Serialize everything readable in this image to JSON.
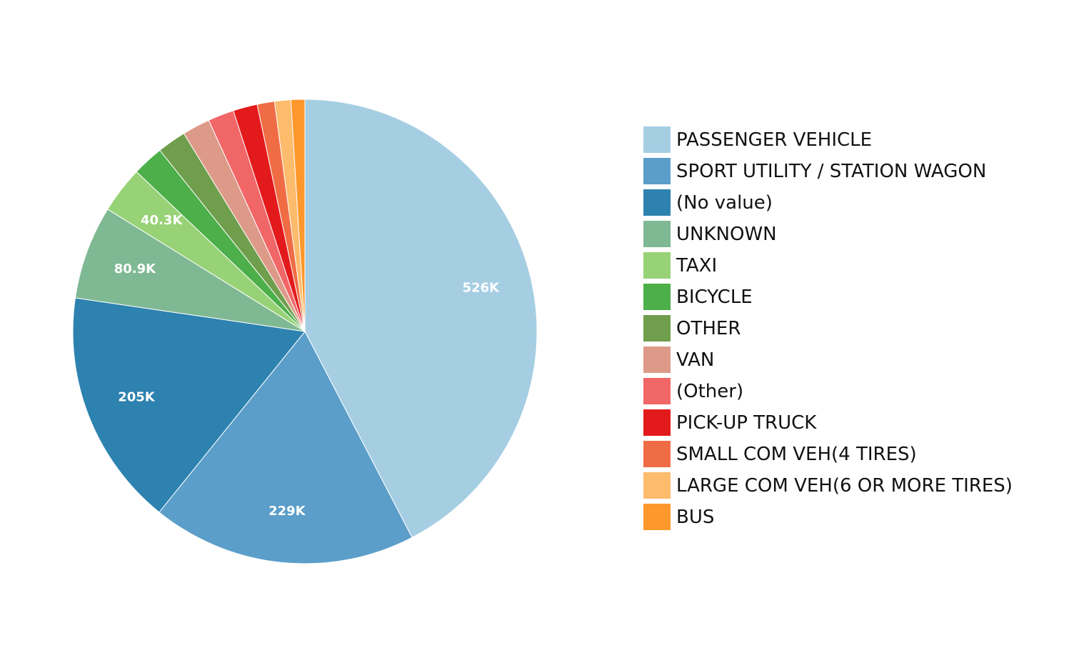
{
  "chart_data": {
    "type": "pie",
    "legend_position": "right",
    "slices": [
      {
        "label": "PASSENGER VEHICLE",
        "value": 526000,
        "display": "526K",
        "color": "#a6cee3"
      },
      {
        "label": "SPORT UTILITY / STATION WAGON",
        "value": 229000,
        "display": "229K",
        "color": "#5b9ec9"
      },
      {
        "label": "(No value)",
        "value": 205000,
        "display": "205K",
        "color": "#2d82af"
      },
      {
        "label": "UNKNOWN",
        "value": 80900,
        "display": "80.9K",
        "color": "#7fb994"
      },
      {
        "label": "TAXI",
        "value": 40300,
        "display": "40.3K",
        "color": "#98d277"
      },
      {
        "label": "BICYCLE",
        "value": 27000,
        "display": "",
        "color": "#4daf4a"
      },
      {
        "label": "OTHER",
        "value": 25000,
        "display": "",
        "color": "#6f9e4c"
      },
      {
        "label": "VAN",
        "value": 24000,
        "display": "",
        "color": "#dd9a88"
      },
      {
        "label": "(Other)",
        "value": 22500,
        "display": "",
        "color": "#f16667"
      },
      {
        "label": "PICK-UP TRUCK",
        "value": 21000,
        "display": "",
        "color": "#e31a1c"
      },
      {
        "label": "SMALL COM VEH(4 TIRES)",
        "value": 15000,
        "display": "",
        "color": "#f06c45"
      },
      {
        "label": "LARGE COM VEH(6 OR MORE TIRES)",
        "value": 14000,
        "display": "",
        "color": "#fdbb6c"
      },
      {
        "label": "BUS",
        "value": 12000,
        "display": "",
        "color": "#fe982c"
      }
    ]
  }
}
